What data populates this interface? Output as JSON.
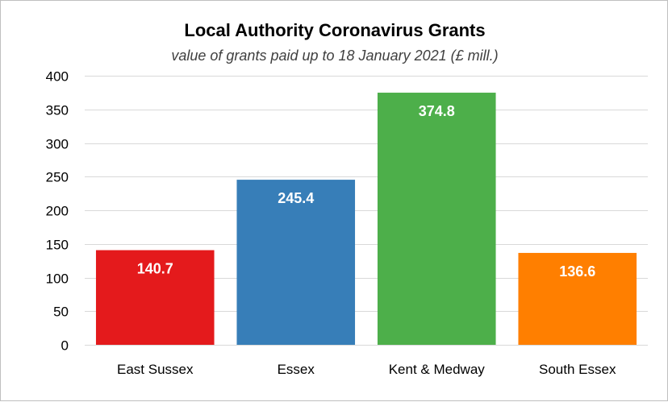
{
  "chart_data": {
    "type": "bar",
    "title": "Local Authority Coronavirus Grants",
    "subtitle": "value of grants paid up to 18 January 2021 (£ mill.)",
    "categories": [
      "East Sussex",
      "Essex",
      "Kent & Medway",
      "South Essex"
    ],
    "values": [
      140.7,
      245.4,
      374.8,
      136.6
    ],
    "data_labels": [
      "140.7",
      "245.4",
      "374.8",
      "136.6"
    ],
    "bar_colors": [
      "#e41a1c",
      "#377eb8",
      "#4daf4a",
      "#ff7f00"
    ],
    "ylim": [
      0,
      400
    ],
    "yticks": [
      0,
      50,
      100,
      150,
      200,
      250,
      300,
      350,
      400
    ],
    "grid": true,
    "legend": "none"
  }
}
